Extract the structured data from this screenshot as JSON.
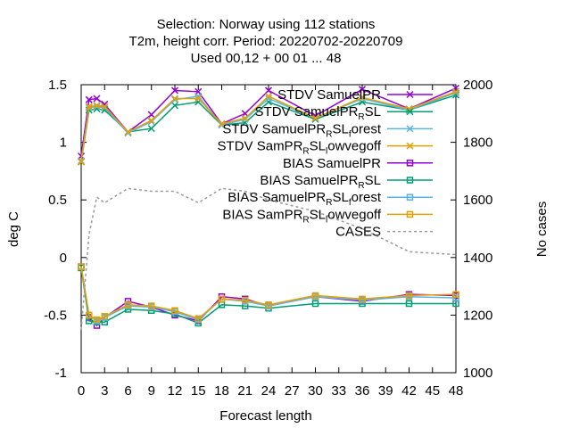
{
  "chart_data": {
    "type": "line",
    "title": [
      "Selection: Norway using   112 stations",
      "T2m, height corr.   Period: 20220702-20220709",
      "Used  00,12  + 00 01 ... 48"
    ],
    "xlabel": "Forecast length",
    "ylabel": "deg C",
    "y2label": "No cases",
    "xlim": [
      0,
      48
    ],
    "ylim": [
      -1,
      1.5
    ],
    "y2lim": [
      1000,
      2000
    ],
    "x_ticks": [
      0,
      3,
      6,
      9,
      12,
      15,
      18,
      21,
      24,
      27,
      30,
      33,
      36,
      39,
      42,
      45,
      48
    ],
    "y_ticks": [
      -1,
      -0.5,
      0,
      0.5,
      1,
      1.5
    ],
    "y_tick_labels": [
      "-1",
      "-0.5",
      "0",
      "0.5",
      "1",
      "1.5"
    ],
    "y2_ticks": [
      1000,
      1200,
      1400,
      1600,
      1800,
      2000
    ],
    "grid": false,
    "legend_position": "top-right",
    "x": [
      0,
      1,
      2,
      3,
      6,
      9,
      12,
      15,
      18,
      21,
      24,
      30,
      36,
      42,
      48
    ],
    "series": [
      {
        "name": "STDV SamuelPR",
        "legend": [
          "STDV SamuelPR"
        ],
        "color": "#9400d3",
        "marker": "x",
        "axis": "y",
        "values": [
          0.88,
          1.37,
          1.38,
          1.33,
          1.09,
          1.24,
          1.45,
          1.44,
          1.16,
          1.25,
          1.45,
          1.23,
          1.46,
          1.29,
          1.47
        ]
      },
      {
        "name": "STDV SamuelPR_RSL",
        "legend": [
          "STDV SamuelPR",
          "R",
          "SL"
        ],
        "color": "#009e73",
        "marker": "x",
        "axis": "y",
        "values": [
          0.83,
          1.28,
          1.29,
          1.28,
          1.09,
          1.12,
          1.32,
          1.35,
          1.15,
          1.17,
          1.35,
          1.2,
          1.35,
          1.28,
          1.41
        ]
      },
      {
        "name": "STDV SamuelPR_RSL_forest",
        "legend": [
          "STDV SamuelPR",
          "R",
          "SL",
          "f",
          "orest"
        ],
        "color": "#56b4e9",
        "marker": "x",
        "axis": "y",
        "values": [
          0.84,
          1.3,
          1.31,
          1.3,
          1.08,
          1.18,
          1.37,
          1.4,
          1.15,
          1.2,
          1.38,
          1.21,
          1.38,
          1.28,
          1.43
        ]
      },
      {
        "name": "STDV SamPR_RSL_lowvegoff",
        "legend": [
          "STDV SamPR",
          "R",
          "SL",
          "l",
          "owvegoff"
        ],
        "color": "#e69f00",
        "marker": "x",
        "axis": "y",
        "values": [
          0.83,
          1.31,
          1.32,
          1.31,
          1.09,
          1.19,
          1.38,
          1.38,
          1.16,
          1.21,
          1.4,
          1.21,
          1.39,
          1.29,
          1.44
        ]
      },
      {
        "name": "BIAS SamuelPR",
        "legend": [
          "BIAS SamuelPR"
        ],
        "color": "#9400d3",
        "marker": "sq",
        "axis": "y",
        "values": [
          -0.08,
          -0.52,
          -0.59,
          -0.52,
          -0.38,
          -0.43,
          -0.5,
          -0.55,
          -0.34,
          -0.36,
          -0.42,
          -0.34,
          -0.38,
          -0.32,
          -0.33
        ]
      },
      {
        "name": "BIAS SamuelPR_RSL",
        "legend": [
          "BIAS SamuelPR",
          "R",
          "SL"
        ],
        "color": "#009e73",
        "marker": "sq",
        "axis": "y",
        "values": [
          -0.09,
          -0.55,
          -0.56,
          -0.56,
          -0.45,
          -0.46,
          -0.49,
          -0.57,
          -0.41,
          -0.42,
          -0.44,
          -0.4,
          -0.4,
          -0.4,
          -0.4
        ]
      },
      {
        "name": "BIAS SamuelPR_RSL_forest",
        "legend": [
          "BIAS SamuelPR",
          "R",
          "SL",
          "f",
          "orest"
        ],
        "color": "#56b4e9",
        "marker": "sq",
        "axis": "y",
        "values": [
          -0.08,
          -0.5,
          -0.55,
          -0.52,
          -0.42,
          -0.43,
          -0.47,
          -0.54,
          -0.36,
          -0.38,
          -0.42,
          -0.34,
          -0.37,
          -0.34,
          -0.35
        ]
      },
      {
        "name": "BIAS SamPR_RSL_lowvegoff",
        "legend": [
          "BIAS SamPR",
          "R",
          "SL",
          "l",
          "owvegoff"
        ],
        "color": "#e69f00",
        "marker": "sq",
        "axis": "y",
        "values": [
          -0.08,
          -0.5,
          -0.54,
          -0.51,
          -0.41,
          -0.42,
          -0.46,
          -0.53,
          -0.36,
          -0.37,
          -0.41,
          -0.33,
          -0.36,
          -0.33,
          -0.32
        ]
      },
      {
        "name": "CASES",
        "legend": [
          "CASES"
        ],
        "color": "#999999",
        "marker": "dash",
        "axis": "y2",
        "values": [
          1150,
          1480,
          1610,
          1590,
          1640,
          1630,
          1630,
          1590,
          1640,
          1630,
          1600,
          1560,
          1500,
          1420,
          1410
        ]
      }
    ]
  }
}
